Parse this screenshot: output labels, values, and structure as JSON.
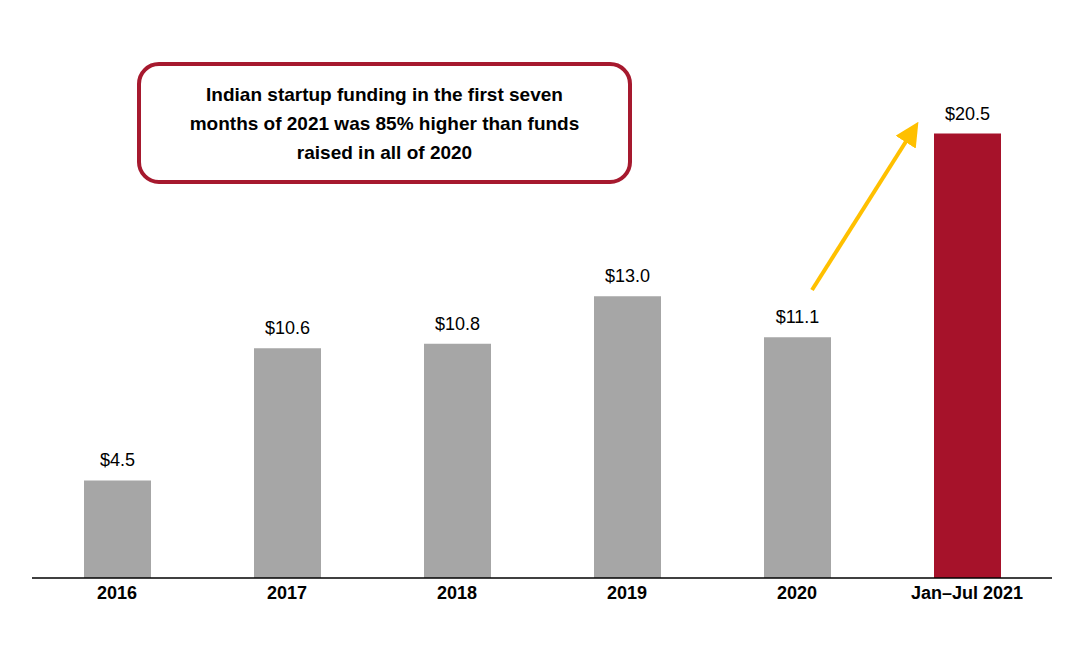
{
  "chart_data": {
    "type": "bar",
    "categories": [
      "2016",
      "2017",
      "2018",
      "2019",
      "2020",
      "Jan–Jul 2021"
    ],
    "values": [
      4.5,
      10.6,
      10.8,
      13.0,
      11.1,
      20.5
    ],
    "value_labels": [
      "$4.5",
      "$10.6",
      "$10.8",
      "$13.0",
      "$11.1",
      "$20.5"
    ],
    "colors": [
      "#a6a6a6",
      "#a6a6a6",
      "#a6a6a6",
      "#a6a6a6",
      "#a6a6a6",
      "#a6122a"
    ],
    "ylim": [
      0,
      25
    ],
    "data_labels": true,
    "tick_labels": "x",
    "annotation": "Indian startup funding in the first seven months of 2021 was 85% higher than funds raised in all of 2020"
  }
}
